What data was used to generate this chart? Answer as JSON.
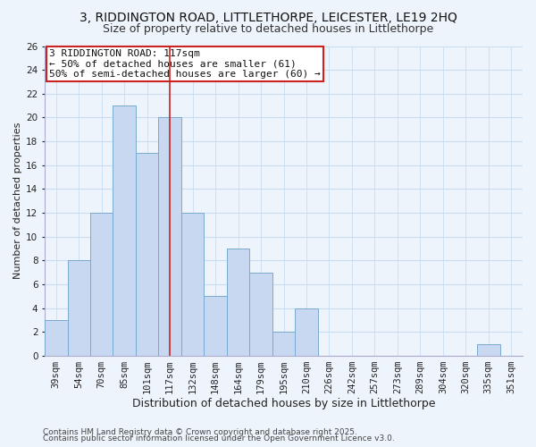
{
  "title1": "3, RIDDINGTON ROAD, LITTLETHORPE, LEICESTER, LE19 2HQ",
  "title2": "Size of property relative to detached houses in Littlethorpe",
  "xlabel": "Distribution of detached houses by size in Littlethorpe",
  "ylabel": "Number of detached properties",
  "bar_labels": [
    "39sqm",
    "54sqm",
    "70sqm",
    "85sqm",
    "101sqm",
    "117sqm",
    "132sqm",
    "148sqm",
    "164sqm",
    "179sqm",
    "195sqm",
    "210sqm",
    "226sqm",
    "242sqm",
    "257sqm",
    "273sqm",
    "289sqm",
    "304sqm",
    "320sqm",
    "335sqm",
    "351sqm"
  ],
  "bar_values": [
    3,
    8,
    12,
    21,
    17,
    20,
    12,
    5,
    9,
    7,
    2,
    4,
    0,
    0,
    0,
    0,
    0,
    0,
    0,
    1,
    0
  ],
  "bar_color": "#c8d8f0",
  "bar_edge_color": "#7aaad0",
  "highlight_index": 5,
  "vline_color": "#cc2222",
  "vline_index": 5,
  "ylim": [
    0,
    26
  ],
  "yticks": [
    0,
    2,
    4,
    6,
    8,
    10,
    12,
    14,
    16,
    18,
    20,
    22,
    24,
    26
  ],
  "grid_color": "#c8ddf0",
  "annotation_title": "3 RIDDINGTON ROAD: 117sqm",
  "annotation_line1": "← 50% of detached houses are smaller (61)",
  "annotation_line2": "50% of semi-detached houses are larger (60) →",
  "footer1": "Contains HM Land Registry data © Crown copyright and database right 2025.",
  "footer2": "Contains public sector information licensed under the Open Government Licence v3.0.",
  "bg_color": "#eef4fc",
  "plot_bg_color": "#eef4fc",
  "title1_fontsize": 10,
  "title2_fontsize": 9,
  "xlabel_fontsize": 9,
  "ylabel_fontsize": 8,
  "tick_fontsize": 7.5,
  "annotation_fontsize": 8,
  "footer_fontsize": 6.5
}
